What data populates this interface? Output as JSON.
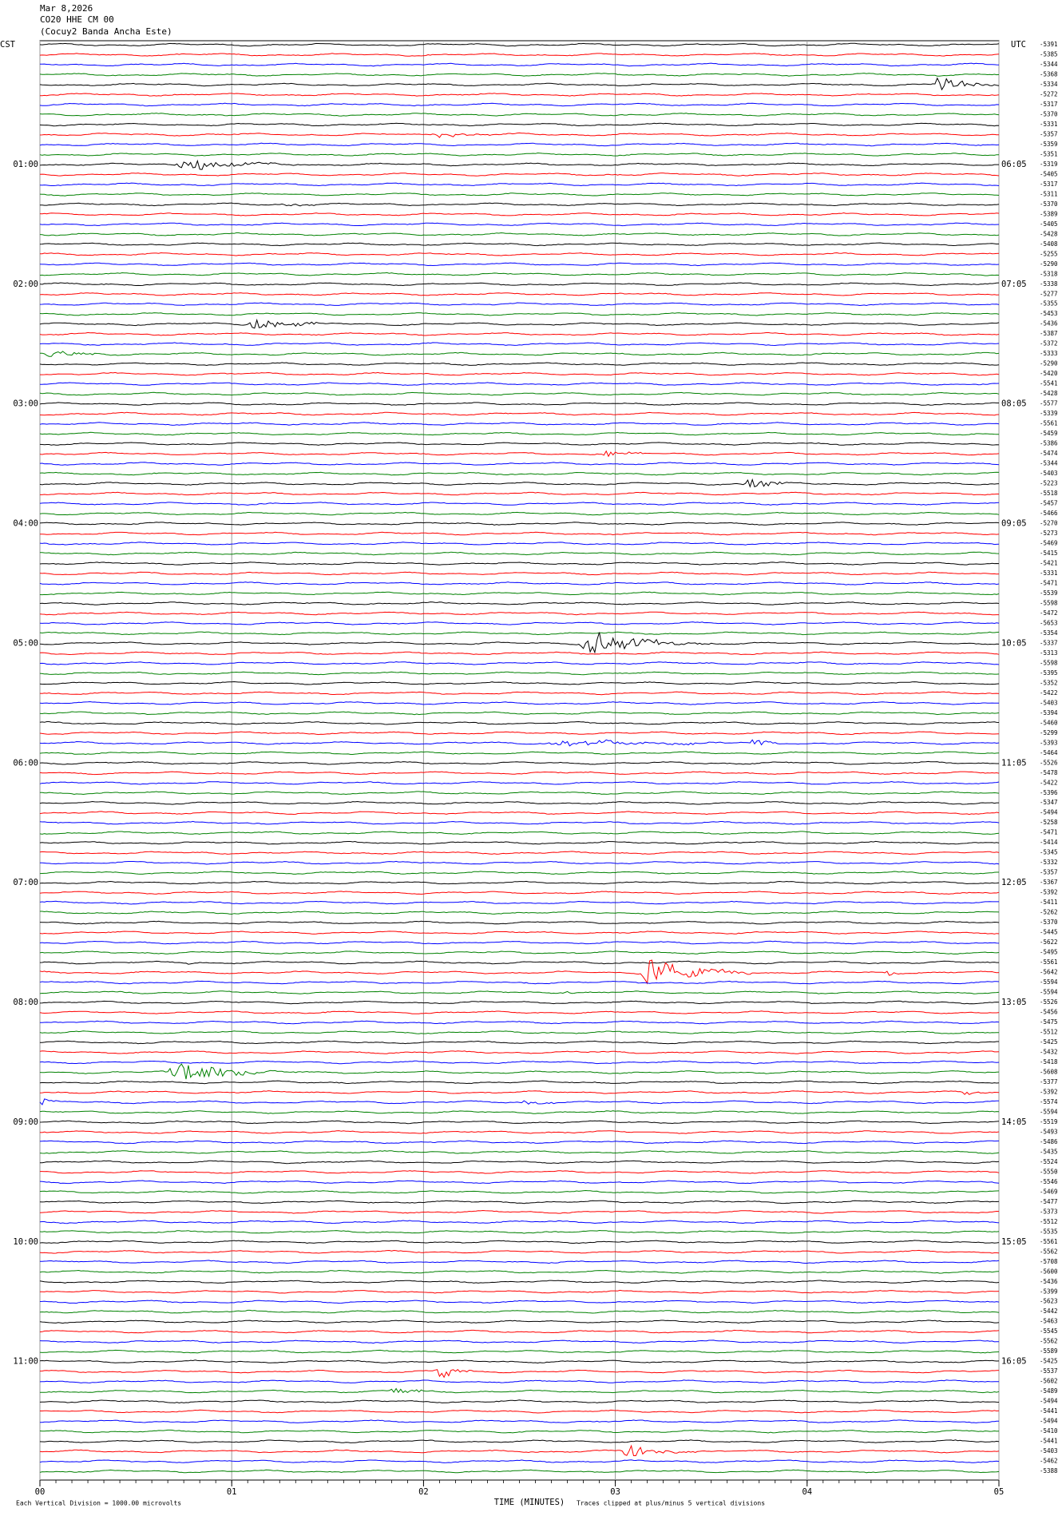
{
  "chart_data": {
    "type": "helicorder",
    "title_lines": [
      "Mar 8,2026",
      "CO20 HHE CM 00",
      "(Cocuy2 Banda Ancha Este)"
    ],
    "left_axis_label": "CST",
    "right_axis_label": "UTC",
    "left_times": [
      "01:00",
      "02:00",
      "03:00",
      "04:00",
      "05:00",
      "06:00",
      "07:00",
      "08:00",
      "09:00",
      "10:00",
      "11:00"
    ],
    "right_times": [
      "06:05",
      "07:05",
      "08:05",
      "09:05",
      "10:05",
      "11:05",
      "12:05",
      "13:05",
      "14:05",
      "15:05",
      "16:05"
    ],
    "trace_labels": [
      -5391,
      -5385,
      -5344,
      -5368,
      -5334,
      -5272,
      -5317,
      -5370,
      -5331,
      -5357,
      -5359,
      -5351,
      -5319,
      -5405,
      -5317,
      -5311,
      -5370,
      -5389,
      -5405,
      -5428,
      -5408,
      -5255,
      -5290,
      -5318,
      -5338,
      -5277,
      -5355,
      -5453,
      -5436,
      -5387,
      -5372,
      -5333,
      -5290,
      -5420,
      -5541,
      -5428,
      -5577,
      -5339,
      -5561,
      -5459,
      -5386,
      -5474,
      -5344,
      -5403,
      -5223,
      -5518,
      -5457,
      -5466,
      -5270,
      -5273,
      -5469,
      -5415,
      -5421,
      -5331,
      -5471,
      -5539,
      -5598,
      -5472,
      -5653,
      -5354,
      -5337,
      -5313,
      -5598,
      -5395,
      -5352,
      -5422,
      -5403,
      -5394,
      -5460,
      -5299,
      -5393,
      -5464,
      -5526,
      -5478,
      -5422,
      -5396,
      -5347,
      -5494,
      -5258,
      -5471,
      -5414,
      -5345,
      -5332,
      -5357,
      -5367,
      -5392,
      -5411,
      -5262,
      -5370,
      -5445,
      -5622,
      -5495,
      -5561,
      -5642,
      -5594,
      -5594,
      -5526,
      -5456,
      -5475,
      -5512,
      -5425,
      -5432,
      -5418,
      -5608,
      -5377,
      -5392,
      -5574,
      -5594,
      -5519,
      -5493,
      -5486,
      -5435,
      -5524,
      -5550,
      -5546,
      -5469,
      -5477,
      -5373,
      -5512,
      -5535,
      -5561,
      -5562,
      -5708,
      -5600,
      -5436,
      -5399,
      -5623,
      -5442,
      -5463,
      -5545,
      -5562,
      -5589,
      -5425,
      -5537,
      -5602,
      -5489,
      -5494,
      -5441,
      -5494,
      -5410,
      -5441,
      -5403,
      -5462,
      -5388
    ],
    "trace_colors": [
      "#000000",
      "#ff0000",
      "#0000ff",
      "#008000"
    ],
    "xlabel": "TIME (MINUTES)",
    "xlim": [
      0,
      5
    ],
    "xticks": [
      {
        "value": 0,
        "label": "00"
      },
      {
        "value": 1,
        "label": "01"
      },
      {
        "value": 2,
        "label": "02"
      },
      {
        "value": 3,
        "label": "03"
      },
      {
        "value": 4,
        "label": "04"
      },
      {
        "value": 5,
        "label": "05"
      }
    ],
    "grid": true,
    "scale_note": "Each Vertical Division = 1000.00 microvolts",
    "clip_note": "Traces clipped at plus/minus 5 vertical divisions"
  }
}
